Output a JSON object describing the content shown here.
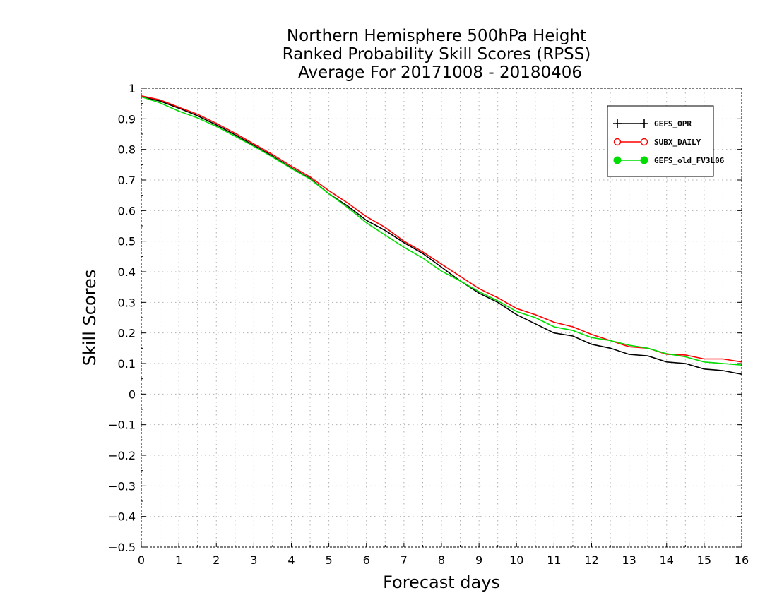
{
  "chart_data": {
    "type": "line",
    "title": [
      "Northern Hemisphere 500hPa Height",
      "Ranked Probability Skill Scores (RPSS)",
      "Average For 20171008 - 20180406"
    ],
    "xlabel": "Forecast days",
    "ylabel": "Skill Scores",
    "xlim": [
      0,
      16
    ],
    "ylim": [
      -0.5,
      1
    ],
    "xticks": [
      0,
      1,
      2,
      3,
      4,
      5,
      6,
      7,
      8,
      9,
      10,
      11,
      12,
      13,
      14,
      15,
      16
    ],
    "yticks": [
      -0.5,
      -0.4,
      -0.3,
      -0.2,
      -0.1,
      0,
      0.1,
      0.2,
      0.3,
      0.4,
      0.5,
      0.6,
      0.7,
      0.8,
      0.9,
      1
    ],
    "ytick_labels": [
      "−0.5",
      "−0.4",
      "−0.3",
      "−0.2",
      "−0.1",
      "0",
      "0.1",
      "0.2",
      "0.3",
      "0.4",
      "0.5",
      "0.6",
      "0.7",
      "0.8",
      "0.9",
      "1"
    ],
    "grid": true,
    "legend_position": "top-right",
    "x": [
      0,
      0.5,
      1,
      1.5,
      2,
      2.5,
      3,
      3.5,
      4,
      4.5,
      5,
      5.5,
      6,
      6.5,
      7,
      7.5,
      8,
      8.5,
      9,
      9.5,
      10,
      10.5,
      11,
      11.5,
      12,
      12.5,
      13,
      13.5,
      14,
      14.5,
      15,
      15.5,
      16
    ],
    "series": [
      {
        "name": "GEFS_OPR",
        "color": "#000000",
        "marker": "plus",
        "values": [
          0.972,
          0.958,
          0.935,
          0.91,
          0.88,
          0.848,
          0.813,
          0.778,
          0.74,
          0.705,
          0.655,
          0.615,
          0.568,
          0.535,
          0.495,
          0.46,
          0.415,
          0.37,
          0.33,
          0.3,
          0.26,
          0.23,
          0.2,
          0.19,
          0.163,
          0.15,
          0.13,
          0.125,
          0.105,
          0.1,
          0.082,
          0.077,
          0.065
        ]
      },
      {
        "name": "SUBX_DAILY",
        "color": "#ff0000",
        "marker": "open-circle",
        "values": [
          0.975,
          0.962,
          0.938,
          0.915,
          0.885,
          0.853,
          0.818,
          0.783,
          0.745,
          0.71,
          0.665,
          0.625,
          0.58,
          0.545,
          0.5,
          0.465,
          0.425,
          0.385,
          0.345,
          0.315,
          0.28,
          0.26,
          0.235,
          0.22,
          0.195,
          0.175,
          0.155,
          0.15,
          0.13,
          0.128,
          0.115,
          0.115,
          0.105
        ]
      },
      {
        "name": "GEFS_old_FV3L06",
        "color": "#00dd00",
        "marker": "filled-circle",
        "values": [
          0.972,
          0.952,
          0.925,
          0.903,
          0.875,
          0.843,
          0.81,
          0.775,
          0.738,
          0.703,
          0.655,
          0.61,
          0.56,
          0.52,
          0.48,
          0.445,
          0.402,
          0.37,
          0.335,
          0.305,
          0.27,
          0.25,
          0.22,
          0.208,
          0.185,
          0.175,
          0.16,
          0.15,
          0.132,
          0.122,
          0.105,
          0.1,
          0.095
        ]
      }
    ]
  }
}
